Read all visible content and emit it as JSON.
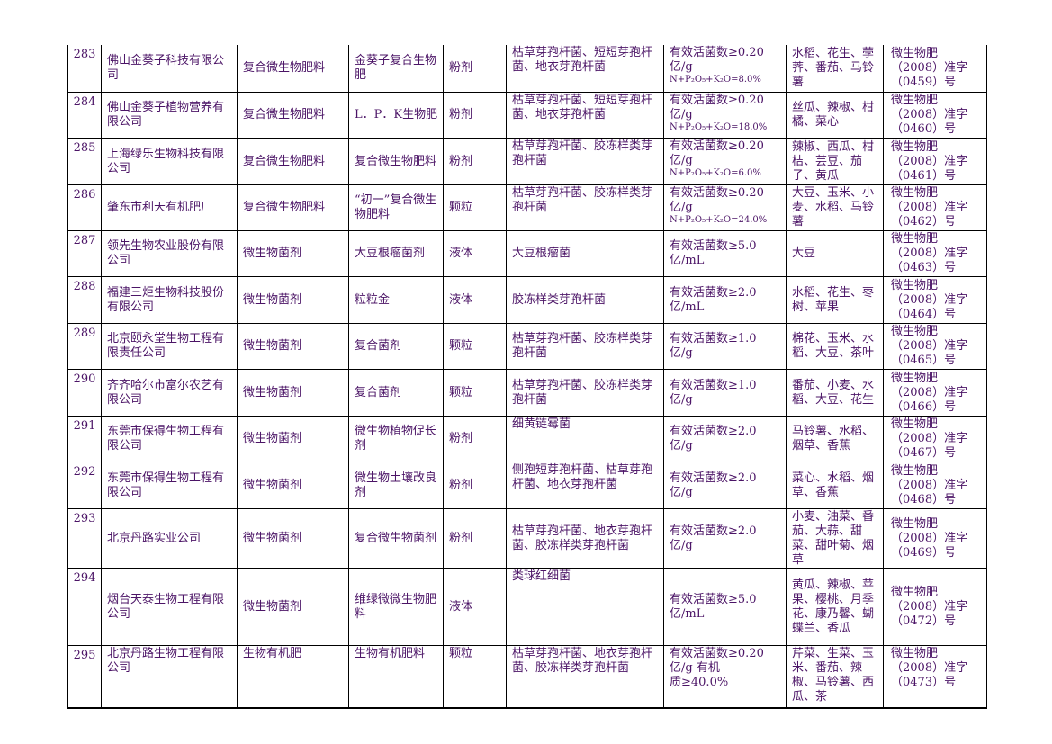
{
  "rows": [
    {
      "no": "283",
      "company": "佛山金葵子科技有限公司",
      "category": "复合微生物肥料",
      "product": "金葵子复合生物肥",
      "form": "粉剂",
      "strain": "枯草芽孢杆菌、短短芽孢杆菌、地衣芽孢杆菌",
      "spec": [
        "有效活菌数≥0.20",
        "亿/g"
      ],
      "formula": "N+P₂O₅+K₂O=8.0%",
      "crops": "水稻、花生、荸荠、番茄、马铃薯",
      "cert": [
        "微生物肥",
        "（2008）准字",
        "（0459）号"
      ]
    },
    {
      "no": "284",
      "company": "佛山金葵子植物营养有限公司",
      "category": "复合微生物肥料",
      "product": "L．P．K生物肥",
      "form": "粉剂",
      "strain": "枯草芽孢杆菌、短短芽孢杆菌、地衣芽孢杆菌",
      "spec": [
        "有效活菌数≥0.20",
        "亿/g"
      ],
      "formula": "N+P₂O₅+K₂O=18.0%",
      "crops": "丝瓜、辣椒、柑橘、菜心",
      "cert": [
        "微生物肥",
        "（2008）准字",
        "（0460）号"
      ]
    },
    {
      "no": "285",
      "company": "上海绿乐生物科技有限公司",
      "category": "复合微生物肥料",
      "product": "复合微生物肥料",
      "form": "粉剂",
      "strain": "枯草芽孢杆菌、胶冻样类芽孢杆菌",
      "spec": [
        "有效活菌数≥0.20",
        "亿/g"
      ],
      "formula": "N+P₂O₅+K₂O=6.0%",
      "crops": "辣椒、西瓜、柑桔、芸豆、茄子、黄瓜",
      "cert": [
        "微生物肥",
        "（2008）准字",
        "（0461）号"
      ]
    },
    {
      "no": "286",
      "company": "肇东市利天有机肥厂",
      "category": "复合微生物肥料",
      "product": "“初一”复合微生物肥料",
      "form": "颗粒",
      "strain": "枯草芽孢杆菌、胶冻样类芽孢杆菌",
      "spec": [
        "有效活菌数≥0.20",
        "亿/g"
      ],
      "formula": "N+P₂O₅+K₂O=24.0%",
      "crops": "大豆、玉米、小麦、水稻、马铃薯",
      "cert": [
        "微生物肥",
        "（2008）准字",
        "（0462）号"
      ]
    },
    {
      "no": "287",
      "company": "领先生物农业股份有限公司",
      "category": "微生物菌剂",
      "product": "大豆根瘤菌剂",
      "form": "液体",
      "strain": "大豆根瘤菌",
      "spec": [
        "有效活菌数≥5.0",
        "亿/mL"
      ],
      "formula": "",
      "crops": "大豆",
      "cert": [
        "微生物肥",
        "（2008）准字",
        "（0463）号"
      ]
    },
    {
      "no": "288",
      "company": "福建三炬生物科技股份有限公司",
      "category": "微生物菌剂",
      "product": "粒粒金",
      "form": "液体",
      "strain": "胶冻样类芽孢杆菌",
      "spec": [
        "有效活菌数≥2.0",
        "亿/mL"
      ],
      "formula": "",
      "crops": "水稻、花生、枣树、苹果",
      "cert": [
        "微生物肥",
        "（2008）准字",
        "（0464）号"
      ]
    },
    {
      "no": "289",
      "company": "北京颐永堂生物工程有限责任公司",
      "category": "微生物菌剂",
      "product": "复合菌剂",
      "form": "颗粒",
      "strain": "枯草芽孢杆菌、胶冻样类芽孢杆菌",
      "spec": [
        "有效活菌数≥1.0",
        "亿/g"
      ],
      "formula": "",
      "crops": "棉花、玉米、水稻、大豆、茶叶",
      "cert": [
        "微生物肥",
        "（2008）准字",
        "（0465）号"
      ]
    },
    {
      "no": "290",
      "company": "齐齐哈尔市富尔农艺有限公司",
      "category": "微生物菌剂",
      "product": "复合菌剂",
      "form": "颗粒",
      "strain": "枯草芽孢杆菌、胶冻样类芽孢杆菌",
      "spec": [
        "有效活菌数≥1.0",
        "亿/g"
      ],
      "formula": "",
      "crops": "番茄、小麦、水稻、大豆、花生",
      "cert": [
        "微生物肥",
        "（2008）准字",
        "（0466）号"
      ]
    },
    {
      "no": "291",
      "company": "东莞市保得生物工程有限公司",
      "category": "微生物菌剂",
      "product": "微生物植物促长剂",
      "form": "粉剂",
      "strain": "细黄链霉菌",
      "spec": [
        "有效活菌数≥2.0",
        "亿/g"
      ],
      "formula": "",
      "crops": "马铃薯、水稻、烟草、香蕉",
      "cert": [
        "微生物肥",
        "（2008）准字",
        "（0467）号"
      ]
    },
    {
      "no": "292",
      "company": "东莞市保得生物工程有限公司",
      "category": "微生物菌剂",
      "product": "微生物土壤改良剂",
      "form": "粉剂",
      "strain": "侧孢短芽孢杆菌、枯草芽孢杆菌、地衣芽孢杆菌",
      "spec": [
        "有效活菌数≥2.0",
        "亿/g"
      ],
      "formula": "",
      "crops": "菜心、水稻、烟草、香蕉",
      "cert": [
        "微生物肥",
        "（2008）准字",
        "（0468）号"
      ]
    },
    {
      "no": "293",
      "company": "北京丹路实业公司",
      "category": "微生物菌剂",
      "product": "复合微生物菌剂",
      "form": "粉剂",
      "strain": "枯草芽孢杆菌、地衣芽孢杆菌、胶冻样类芽孢杆菌",
      "spec": [
        "有效活菌数≥2.0",
        "亿/g"
      ],
      "formula": "",
      "crops": "小麦、油菜、番茄、大蒜、甜菜、甜叶菊、烟草",
      "cert": [
        "微生物肥",
        "（2008）准字",
        "（0469）号"
      ]
    },
    {
      "no": "294",
      "company": "烟台天泰生物工程有限公司",
      "category": "微生物菌剂",
      "product": "维绿微微生物肥料",
      "form": "液体",
      "strain": "类球红细菌",
      "spec": [
        "有效活菌数≥5.0",
        "亿/mL"
      ],
      "formula": "",
      "crops": "黄瓜、辣椒、苹果、樱桃、月季花、康乃馨、蝴蝶兰、香瓜",
      "cert": [
        "微生物肥",
        "（2008）准字",
        "（0472）号"
      ]
    },
    {
      "no": "295",
      "company": "北京丹路生物工程有限公司",
      "category": "生物有机肥",
      "product": "生物有机肥料",
      "form": "颗粒",
      "strain": "枯草芽孢杆菌、地衣芽孢杆菌、胶冻样类芽孢杆菌",
      "spec": [
        "有效活菌数≥0.20",
        "亿/g          有机",
        "质≥40.0%"
      ],
      "formula": "",
      "crops": "芹菜、生菜、玉米、番茄、辣椒、马铃薯、西瓜、茶",
      "cert": [
        "微生物肥",
        "（2008）准字",
        "（0473）号"
      ]
    }
  ]
}
